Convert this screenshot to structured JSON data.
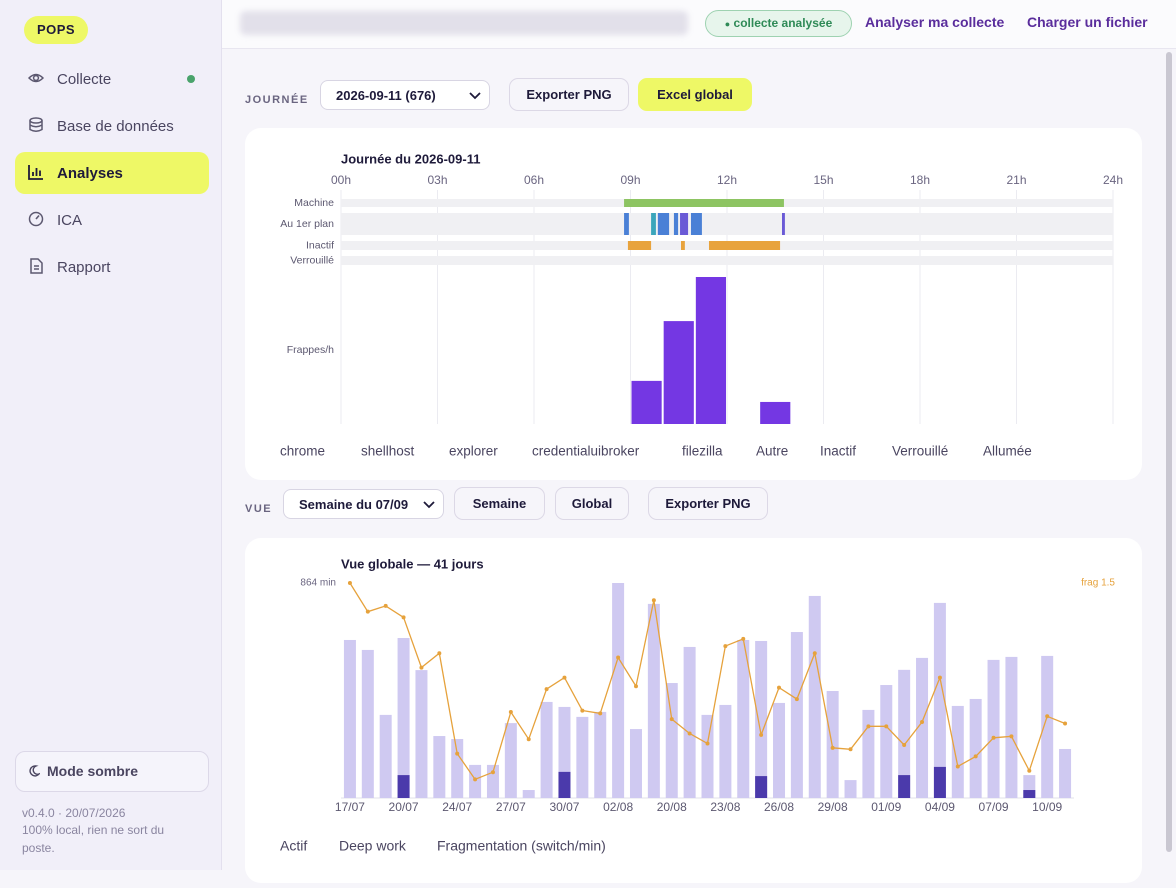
{
  "topbar": {
    "badge": "collecte analysée",
    "links": [
      "Analyser ma collecte",
      "Charger un fichier"
    ]
  },
  "sidebar": {
    "logo": "POPS",
    "nav": [
      "Collecte",
      "Base de données",
      "Analyses",
      "ICA",
      "Rapport"
    ],
    "active_nav": 2,
    "theme_button": "Mode sombre",
    "version": "v0.4.0 · 20/07/2026",
    "footer_note": "100% local, rien ne sort du poste."
  },
  "journee_toolbar": {
    "label": "JOURNÉE",
    "select": "2026-09-11 (676)",
    "buttons": [
      "Exporter PNG",
      "Excel global"
    ]
  },
  "vue_toolbar": {
    "label": "VUE",
    "select": "Semaine du 07/09",
    "buttons": [
      "Semaine",
      "Global",
      "Exporter PNG"
    ]
  },
  "chart_data": [
    {
      "type": "timeline",
      "title": "Journée du 2026-09-11",
      "xlim": [
        0,
        24
      ],
      "xticks": [
        {
          "value": 0,
          "label": "00h"
        },
        {
          "value": 3,
          "label": "03h"
        },
        {
          "value": 6,
          "label": "06h"
        },
        {
          "value": 9,
          "label": "09h"
        },
        {
          "value": 12,
          "label": "12h"
        },
        {
          "value": 15,
          "label": "15h"
        },
        {
          "value": 18,
          "label": "18h"
        },
        {
          "value": 21,
          "label": "21h"
        },
        {
          "value": 24,
          "label": "24h"
        }
      ],
      "grid": true,
      "rows": [
        {
          "name": "Machine",
          "segments": [
            {
              "start": 8.8,
              "end": 13.77,
              "color": "#8dc462"
            }
          ]
        },
        {
          "name": "Au 1er plan",
          "segments": [
            {
              "start": 8.8,
              "end": 8.95,
              "color": "#4a80d6"
            },
            {
              "start": 9.64,
              "end": 9.79,
              "color": "#3ba5bb"
            },
            {
              "start": 9.85,
              "end": 10.2,
              "color": "#4a80d6"
            },
            {
              "start": 10.35,
              "end": 10.48,
              "color": "#4a80d6"
            },
            {
              "start": 10.54,
              "end": 10.79,
              "color": "#6a5ad6"
            },
            {
              "start": 10.88,
              "end": 11.22,
              "color": "#4a80d6"
            },
            {
              "start": 13.71,
              "end": 13.8,
              "color": "#6a5ad6"
            }
          ]
        },
        {
          "name": "Inactif",
          "segments": [
            {
              "start": 8.92,
              "end": 9.64,
              "color": "#e8a33d"
            },
            {
              "start": 10.57,
              "end": 10.69,
              "color": "#e8a33d"
            },
            {
              "start": 11.44,
              "end": 13.65,
              "color": "#e8a33d"
            }
          ]
        },
        {
          "name": "Verrouillé",
          "segments": []
        }
      ],
      "frappes": {
        "name": "Frappes/h",
        "color": "#7437e3",
        "hours": [
          9,
          10,
          11,
          13
        ],
        "values": [
          880,
          2100,
          3000,
          450
        ]
      },
      "legend": [
        "chrome",
        "shellhost",
        "explorer",
        "credentialuibroker",
        "filezilla",
        "Autre",
        "Inactif",
        "Verrouillé",
        "Allumée"
      ]
    },
    {
      "type": "bar",
      "title": "Vue globale — 41 jours",
      "categories": [
        "17/07",
        null,
        null,
        "20/07",
        null,
        null,
        "24/07",
        null,
        null,
        "27/07",
        null,
        null,
        "30/07",
        null,
        null,
        "02/08",
        null,
        null,
        "20/08",
        null,
        null,
        "23/08",
        null,
        null,
        "26/08",
        null,
        null,
        "29/08",
        null,
        null,
        "01/09",
        null,
        null,
        "04/09",
        null,
        null,
        "07/09",
        null,
        null,
        "10/09",
        null
      ],
      "ylim": [
        0,
        864
      ],
      "yticks": [
        {
          "value": 864,
          "label": "864 min"
        }
      ],
      "y2lim": [
        0,
        1.5
      ],
      "y2ticks": [
        {
          "value": 1.5,
          "label": "frag 1.5"
        }
      ],
      "series": [
        {
          "name": "Actif",
          "color": "#cfc9f1",
          "values": [
            635,
            595,
            334,
            643,
            514,
            249,
            237,
            133,
            133,
            301,
            32,
            386,
            366,
            326,
            346,
            864,
            277,
            780,
            462,
            607,
            334,
            374,
            635,
            631,
            382,
            667,
            812,
            430,
            72,
            354,
            454,
            515,
            563,
            784,
            370,
            398,
            555,
            567,
            92,
            571,
            197
          ]
        },
        {
          "name": "Deep work",
          "color": "#4b3aab",
          "values": [
            0,
            0,
            0,
            92,
            0,
            0,
            0,
            0,
            0,
            0,
            0,
            0,
            105,
            0,
            0,
            0,
            0,
            0,
            0,
            0,
            0,
            0,
            0,
            88,
            0,
            0,
            0,
            0,
            0,
            0,
            0,
            92,
            0,
            125,
            0,
            0,
            0,
            0,
            32,
            0,
            0
          ]
        },
        {
          "name": "Fragmentation (switch/min)",
          "color": "#e6a23c",
          "type": "line",
          "axis": "y2",
          "values": [
            1.5,
            1.3,
            1.34,
            1.26,
            0.91,
            1.01,
            0.31,
            0.13,
            0.18,
            0.6,
            0.41,
            0.76,
            0.84,
            0.61,
            0.59,
            0.98,
            0.78,
            1.38,
            0.55,
            0.45,
            0.38,
            1.06,
            1.11,
            0.44,
            0.77,
            0.69,
            1.01,
            0.35,
            0.34,
            0.5,
            0.5,
            0.37,
            0.53,
            0.84,
            0.22,
            0.29,
            0.42,
            0.43,
            0.19,
            0.57,
            0.52
          ]
        }
      ]
    }
  ]
}
